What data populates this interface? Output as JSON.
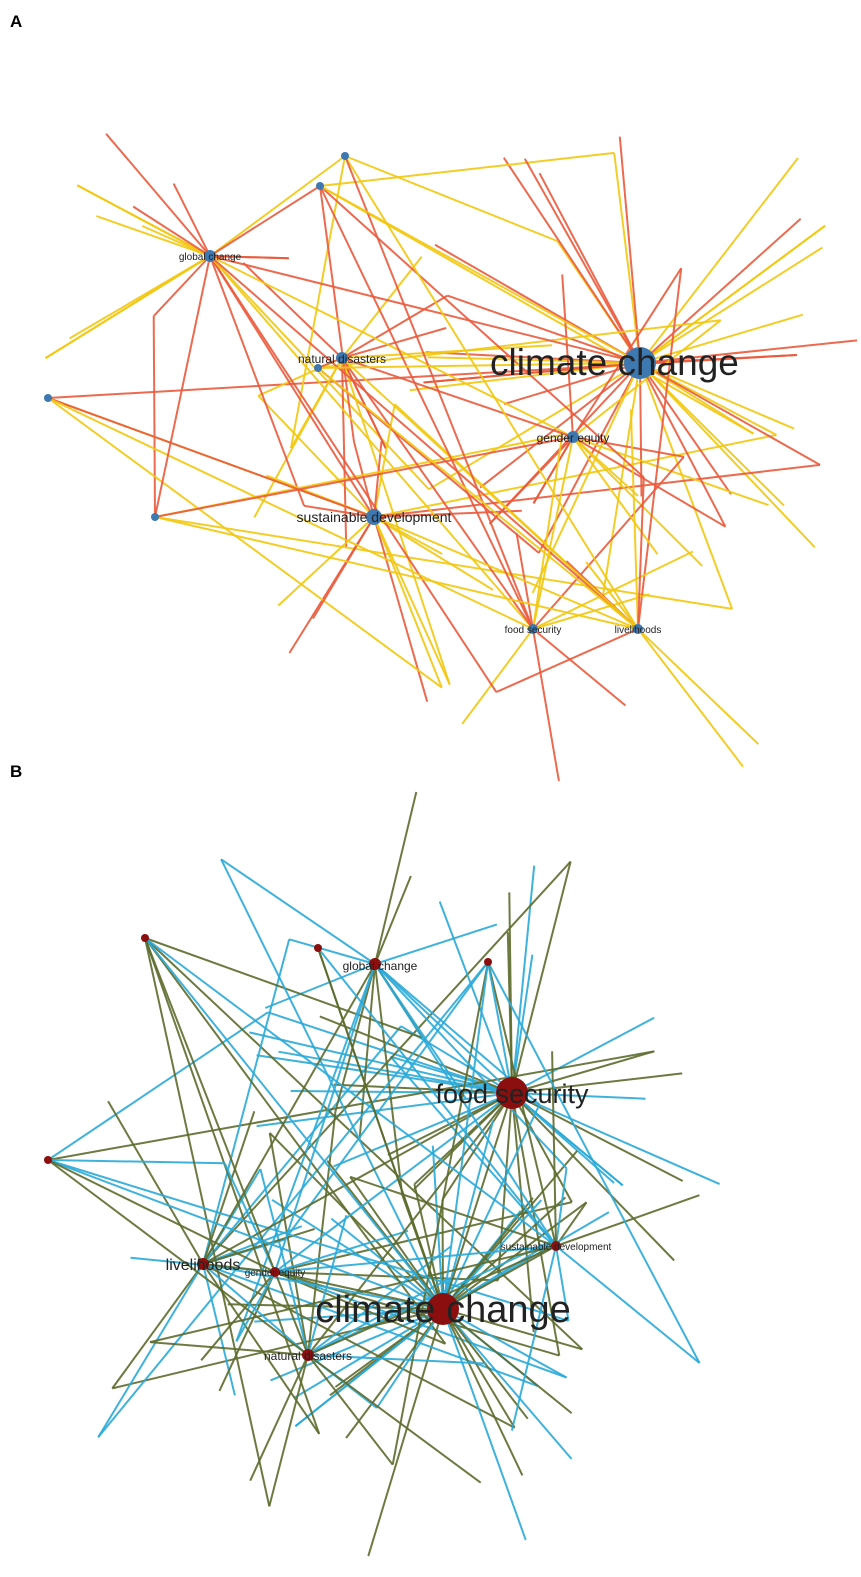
{
  "panels": [
    {
      "letter": "A",
      "edge_colors": [
        "#f2c80f",
        "#ea5a3c"
      ],
      "node_color": "#3d78b0",
      "nodes": [
        {
          "id": "climate-change",
          "label": "climate change",
          "size": "large"
        },
        {
          "id": "global-change",
          "label": "global change",
          "size": "small"
        },
        {
          "id": "natural-disasters",
          "label": "natural disasters",
          "size": "small"
        },
        {
          "id": "gender-equity",
          "label": "gender equity",
          "size": "small"
        },
        {
          "id": "sustainable-development",
          "label": "sustainable development",
          "size": "medium"
        },
        {
          "id": "food-security",
          "label": "food security",
          "size": "tiny"
        },
        {
          "id": "livelihoods",
          "label": "livelihoods",
          "size": "tiny"
        }
      ]
    },
    {
      "letter": "B",
      "edge_colors": [
        "#2aaad8",
        "#5c6b2e"
      ],
      "node_color": "#8b0f0f",
      "nodes": [
        {
          "id": "food-security",
          "label": "food security",
          "size": "large"
        },
        {
          "id": "climate-change",
          "label": "climate change",
          "size": "large"
        },
        {
          "id": "global-change",
          "label": "global change",
          "size": "small"
        },
        {
          "id": "livelihoods",
          "label": "livelihoods",
          "size": "small"
        },
        {
          "id": "gender-equity",
          "label": "gender equity",
          "size": "tiny"
        },
        {
          "id": "natural-disasters",
          "label": "natural disasters",
          "size": "small"
        },
        {
          "id": "sustainable-development",
          "label": "sustainable development",
          "size": "tiny"
        }
      ]
    }
  ]
}
